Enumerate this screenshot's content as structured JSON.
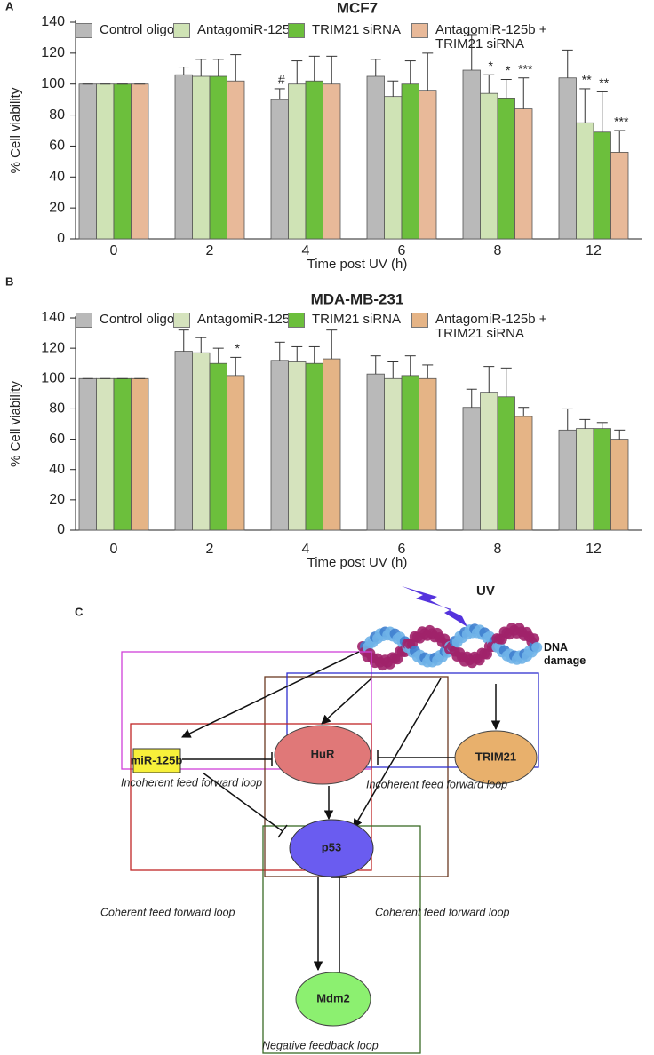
{
  "chart_data": [
    {
      "type": "bar",
      "panel_label": "A",
      "title": "MCF7",
      "x_label": "Time post UV (h)",
      "y_label": "% Cell viability",
      "categories": [
        "0",
        "2",
        "4",
        "6",
        "8",
        "12"
      ],
      "series": [
        {
          "name": "Control oligo",
          "color": "#b9b9b9",
          "values": [
            100,
            106,
            90,
            105,
            109,
            104
          ],
          "errors": [
            0,
            5,
            7,
            11,
            23,
            18
          ],
          "significance": [
            null,
            null,
            "#",
            null,
            null,
            null
          ]
        },
        {
          "name": "AntagomiR-125b",
          "color": "#cfe3b5",
          "values": [
            100,
            105,
            100,
            92,
            94,
            75
          ],
          "errors": [
            0,
            11,
            15,
            10,
            12,
            22
          ],
          "significance": [
            null,
            null,
            null,
            null,
            "*",
            "**"
          ]
        },
        {
          "name": "TRIM21 siRNA",
          "color": "#6cbf3c",
          "values": [
            100,
            105,
            102,
            100,
            91,
            69
          ],
          "errors": [
            0,
            11,
            16,
            15,
            12,
            26
          ],
          "significance": [
            null,
            null,
            null,
            null,
            "*",
            "**"
          ]
        },
        {
          "name": "AntagomiR-125b + TRIM21 siRNA",
          "color": "#e8b999",
          "values": [
            100,
            102,
            100,
            96,
            84,
            56
          ],
          "errors": [
            0,
            17,
            18,
            24,
            20,
            14
          ],
          "significance": [
            null,
            null,
            null,
            null,
            "***",
            "***"
          ]
        }
      ],
      "ylim": [
        0,
        140
      ],
      "yticks": [
        0,
        20,
        40,
        60,
        80,
        100,
        120,
        140
      ]
    },
    {
      "type": "bar",
      "panel_label": "B",
      "title": "MDA-MB-231",
      "x_label": "Time post UV (h)",
      "y_label": "% Cell viability",
      "categories": [
        "0",
        "2",
        "4",
        "6",
        "8",
        "12"
      ],
      "series": [
        {
          "name": "Control oligo",
          "color": "#b9b9b9",
          "values": [
            100,
            118,
            112,
            103,
            81,
            66
          ],
          "errors": [
            0,
            14,
            12,
            12,
            12,
            14
          ]
        },
        {
          "name": "AntagomiR-125b",
          "color": "#d5e3bd",
          "values": [
            100,
            117,
            111,
            100,
            91,
            67
          ],
          "errors": [
            0,
            10,
            10,
            11,
            17,
            6
          ]
        },
        {
          "name": "TRIM21 siRNA",
          "color": "#6cbf3c",
          "values": [
            100,
            110,
            110,
            102,
            88,
            67
          ],
          "errors": [
            0,
            10,
            11,
            13,
            19,
            4
          ]
        },
        {
          "name": "AntagomiR-125b + TRIM21 siRNA",
          "color": "#e5b486",
          "values": [
            100,
            102,
            113,
            100,
            75,
            60
          ],
          "errors": [
            0,
            12,
            19,
            9,
            6,
            6
          ],
          "significance": [
            null,
            "*",
            null,
            null,
            null,
            null
          ]
        }
      ],
      "ylim": [
        0,
        140
      ],
      "yticks": [
        0,
        20,
        40,
        60,
        80,
        100,
        120,
        140
      ]
    }
  ],
  "diagram": {
    "panel_label": "C",
    "stimulus": "UV",
    "source": "DNA damage",
    "nodes": [
      "miR-125b",
      "HuR",
      "TRIM21",
      "p53",
      "Mdm2"
    ],
    "loops": [
      "Incoherent feed forward loop",
      "Incoherent feed forward loop",
      "Coherent feed forward loop",
      "Coherent feed forward loop",
      "Negative feedback loop"
    ]
  }
}
